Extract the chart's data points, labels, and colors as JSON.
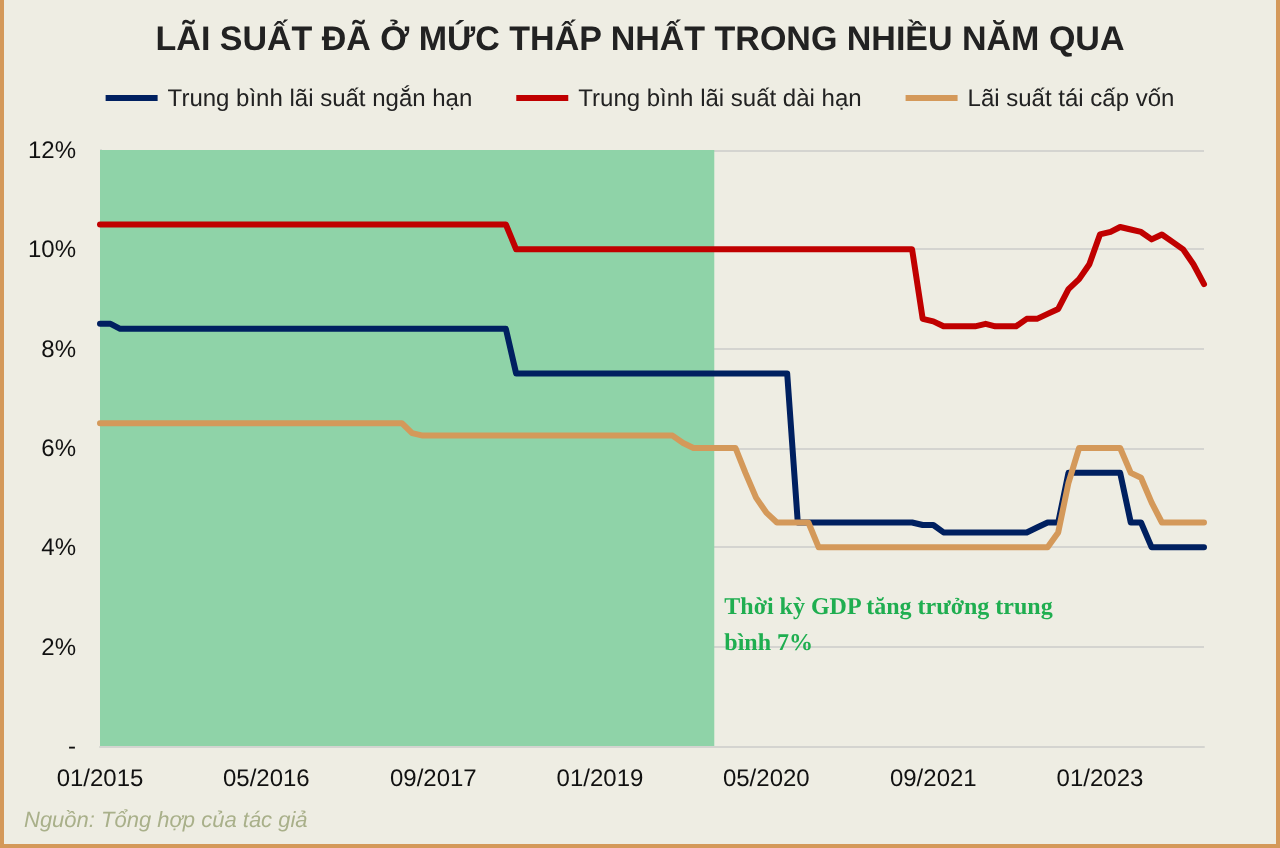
{
  "chart_data": {
    "type": "line",
    "title": "LÃI SUẤT ĐÃ Ở MỨC THẤP NHẤT TRONG NHIỀU NĂM QUA",
    "x": [
      "2015-01",
      "2015-02",
      "2015-03",
      "2015-04",
      "2015-05",
      "2015-06",
      "2015-07",
      "2015-08",
      "2015-09",
      "2015-10",
      "2015-11",
      "2015-12",
      "2016-01",
      "2016-02",
      "2016-03",
      "2016-04",
      "2016-05",
      "2016-06",
      "2016-07",
      "2016-08",
      "2016-09",
      "2016-10",
      "2016-11",
      "2016-12",
      "2017-01",
      "2017-02",
      "2017-03",
      "2017-04",
      "2017-05",
      "2017-06",
      "2017-07",
      "2017-08",
      "2017-09",
      "2017-10",
      "2017-11",
      "2017-12",
      "2018-01",
      "2018-02",
      "2018-03",
      "2018-04",
      "2018-05",
      "2018-06",
      "2018-07",
      "2018-08",
      "2018-09",
      "2018-10",
      "2018-11",
      "2018-12",
      "2019-01",
      "2019-02",
      "2019-03",
      "2019-04",
      "2019-05",
      "2019-06",
      "2019-07",
      "2019-08",
      "2019-09",
      "2019-10",
      "2019-11",
      "2019-12",
      "2020-01",
      "2020-02",
      "2020-03",
      "2020-04",
      "2020-05",
      "2020-06",
      "2020-07",
      "2020-08",
      "2020-09",
      "2020-10",
      "2020-11",
      "2020-12",
      "2021-01",
      "2021-02",
      "2021-03",
      "2021-04",
      "2021-05",
      "2021-06",
      "2021-07",
      "2021-08",
      "2021-09",
      "2021-10",
      "2021-11",
      "2021-12",
      "2022-01",
      "2022-02",
      "2022-03",
      "2022-04",
      "2022-05",
      "2022-06",
      "2022-07",
      "2022-08",
      "2022-09",
      "2022-10",
      "2022-11",
      "2022-12",
      "2023-01",
      "2023-02",
      "2023-03",
      "2023-04",
      "2023-05",
      "2023-06",
      "2023-07",
      "2023-08",
      "2023-09",
      "2023-10",
      "2023-11"
    ],
    "series": [
      {
        "name": "Trung bình lãi suất ngắn hạn",
        "color": "#002060",
        "values": [
          8.5,
          8.5,
          8.4,
          8.4,
          8.4,
          8.4,
          8.4,
          8.4,
          8.4,
          8.4,
          8.4,
          8.4,
          8.4,
          8.4,
          8.4,
          8.4,
          8.4,
          8.4,
          8.4,
          8.4,
          8.4,
          8.4,
          8.4,
          8.4,
          8.4,
          8.4,
          8.4,
          8.4,
          8.4,
          8.4,
          8.4,
          8.4,
          8.4,
          8.4,
          8.4,
          8.4,
          8.4,
          8.4,
          8.4,
          8.4,
          7.5,
          7.5,
          7.5,
          7.5,
          7.5,
          7.5,
          7.5,
          7.5,
          7.5,
          7.5,
          7.5,
          7.5,
          7.5,
          7.5,
          7.5,
          7.5,
          7.5,
          7.5,
          7.5,
          7.5,
          7.5,
          7.5,
          7.5,
          7.5,
          7.5,
          7.5,
          7.5,
          4.5,
          4.5,
          4.5,
          4.5,
          4.5,
          4.5,
          4.5,
          4.5,
          4.5,
          4.5,
          4.5,
          4.5,
          4.45,
          4.45,
          4.3,
          4.3,
          4.3,
          4.3,
          4.3,
          4.3,
          4.3,
          4.3,
          4.3,
          4.4,
          4.5,
          4.5,
          5.5,
          5.5,
          5.5,
          5.5,
          5.5,
          5.5,
          4.5,
          4.5,
          4.0,
          4.0,
          4.0,
          4.0,
          4.0,
          4.0
        ]
      },
      {
        "name": "Trung bình lãi suất dài hạn",
        "color": "#c00000",
        "values": [
          10.5,
          10.5,
          10.5,
          10.5,
          10.5,
          10.5,
          10.5,
          10.5,
          10.5,
          10.5,
          10.5,
          10.5,
          10.5,
          10.5,
          10.5,
          10.5,
          10.5,
          10.5,
          10.5,
          10.5,
          10.5,
          10.5,
          10.5,
          10.5,
          10.5,
          10.5,
          10.5,
          10.5,
          10.5,
          10.5,
          10.5,
          10.5,
          10.5,
          10.5,
          10.5,
          10.5,
          10.5,
          10.5,
          10.5,
          10.5,
          10.0,
          10.0,
          10.0,
          10.0,
          10.0,
          10.0,
          10.0,
          10.0,
          10.0,
          10.0,
          10.0,
          10.0,
          10.0,
          10.0,
          10.0,
          10.0,
          10.0,
          10.0,
          10.0,
          10.0,
          10.0,
          10.0,
          10.0,
          10.0,
          10.0,
          10.0,
          10.0,
          10.0,
          10.0,
          10.0,
          10.0,
          10.0,
          10.0,
          10.0,
          10.0,
          10.0,
          10.0,
          10.0,
          10.0,
          8.6,
          8.55,
          8.45,
          8.45,
          8.45,
          8.45,
          8.5,
          8.45,
          8.45,
          8.45,
          8.6,
          8.6,
          8.7,
          8.8,
          9.2,
          9.4,
          9.7,
          10.3,
          10.35,
          10.45,
          10.4,
          10.35,
          10.2,
          10.3,
          10.15,
          10.0,
          9.7,
          9.3
        ]
      },
      {
        "name": "Lãi suất tái cấp vốn",
        "color": "#d4995a",
        "values": [
          6.5,
          6.5,
          6.5,
          6.5,
          6.5,
          6.5,
          6.5,
          6.5,
          6.5,
          6.5,
          6.5,
          6.5,
          6.5,
          6.5,
          6.5,
          6.5,
          6.5,
          6.5,
          6.5,
          6.5,
          6.5,
          6.5,
          6.5,
          6.5,
          6.5,
          6.5,
          6.5,
          6.5,
          6.5,
          6.5,
          6.3,
          6.25,
          6.25,
          6.25,
          6.25,
          6.25,
          6.25,
          6.25,
          6.25,
          6.25,
          6.25,
          6.25,
          6.25,
          6.25,
          6.25,
          6.25,
          6.25,
          6.25,
          6.25,
          6.25,
          6.25,
          6.25,
          6.25,
          6.25,
          6.25,
          6.25,
          6.1,
          6.0,
          6.0,
          6.0,
          6.0,
          6.0,
          5.5,
          5.0,
          4.7,
          4.5,
          4.5,
          4.5,
          4.5,
          4.0,
          4.0,
          4.0,
          4.0,
          4.0,
          4.0,
          4.0,
          4.0,
          4.0,
          4.0,
          4.0,
          4.0,
          4.0,
          4.0,
          4.0,
          4.0,
          4.0,
          4.0,
          4.0,
          4.0,
          4.0,
          4.0,
          4.0,
          4.3,
          5.3,
          6.0,
          6.0,
          6.0,
          6.0,
          6.0,
          5.5,
          5.4,
          4.9,
          4.5,
          4.5,
          4.5,
          4.5,
          4.5
        ]
      }
    ],
    "xlim": [
      "2015-01",
      "2023-11"
    ],
    "xticks": [
      {
        "value": "2015-01",
        "label": "01/2015"
      },
      {
        "value": "2016-05",
        "label": "05/2016"
      },
      {
        "value": "2017-09",
        "label": "09/2017"
      },
      {
        "value": "2019-01",
        "label": "01/2019"
      },
      {
        "value": "2020-05",
        "label": "05/2020"
      },
      {
        "value": "2021-09",
        "label": "09/2021"
      },
      {
        "value": "2023-01",
        "label": "01/2023"
      }
    ],
    "ylim": [
      0,
      12
    ],
    "yticks": [
      {
        "value": 0,
        "label": "-"
      },
      {
        "value": 2,
        "label": "2%"
      },
      {
        "value": 4,
        "label": "4%"
      },
      {
        "value": 6,
        "label": "6%"
      },
      {
        "value": 8,
        "label": "8%"
      },
      {
        "value": 10,
        "label": "10%"
      },
      {
        "value": 12,
        "label": "12%"
      }
    ],
    "bands": [
      {
        "axis": "x",
        "from": "2015-01",
        "to": "2019-12",
        "label": "Thời kỳ GDP tăng trưởng trung bình 7%",
        "color": "#8fd3a8"
      }
    ],
    "annotations": [
      "Nguồn: Tổng hợp của tác giả"
    ],
    "grid": "y",
    "legend": "top",
    "marker": "none",
    "line_style": "solid"
  }
}
